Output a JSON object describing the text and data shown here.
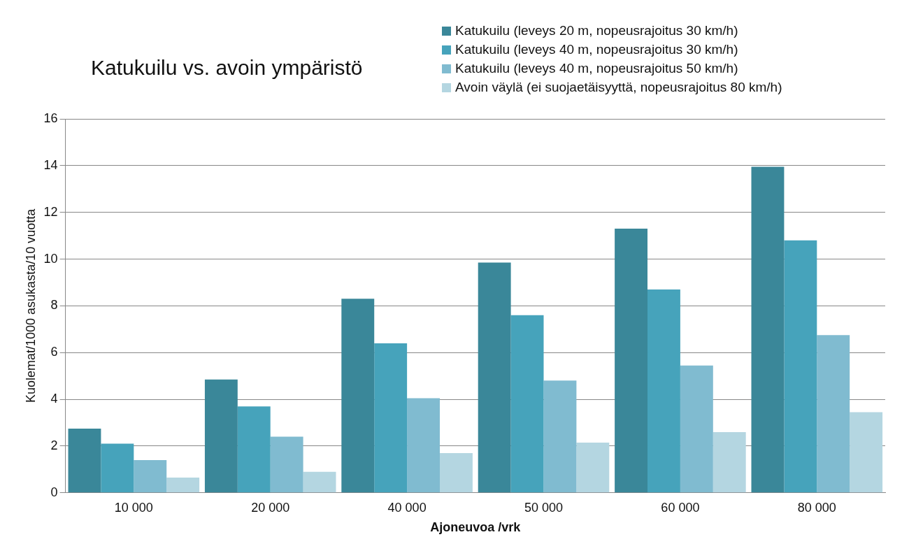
{
  "chart_data": {
    "type": "bar",
    "title": "Katukuilu vs. avoin ympäristö",
    "xlabel": "Ajoneuvoa /vrk",
    "ylabel": "Kuolemat/1000 asukasta/10 vuotta",
    "categories": [
      "10 000",
      "20 000",
      "40 000",
      "50 000",
      "60 000",
      "80 000"
    ],
    "series": [
      {
        "name": "Katukuilu (leveys 20 m, nopeusrajoitus 30 km/h)",
        "color": "#3a8799",
        "values": [
          2.75,
          4.85,
          8.3,
          9.85,
          11.3,
          13.95
        ]
      },
      {
        "name": "Katukuilu (leveys 40 m, nopeusrajoitus 30 km/h)",
        "color": "#46a3bb",
        "values": [
          2.1,
          3.7,
          6.4,
          7.6,
          8.7,
          10.8
        ]
      },
      {
        "name": "Katukuilu (leveys 40 m, nopeusrajoitus 50 km/h)",
        "color": "#80bbd0",
        "values": [
          1.4,
          2.4,
          4.05,
          4.8,
          5.45,
          6.75
        ]
      },
      {
        "name": "Avoin väylä (ei suojaetäisyyttä, nopeusrajoitus 80 km/h)",
        "color": "#b4d6e1",
        "values": [
          0.65,
          0.9,
          1.7,
          2.15,
          2.6,
          3.45
        ]
      }
    ],
    "ylim": [
      0,
      16
    ],
    "yticks": [
      0,
      2,
      4,
      6,
      8,
      10,
      12,
      14,
      16
    ],
    "grid": "y",
    "legend": "top right"
  }
}
